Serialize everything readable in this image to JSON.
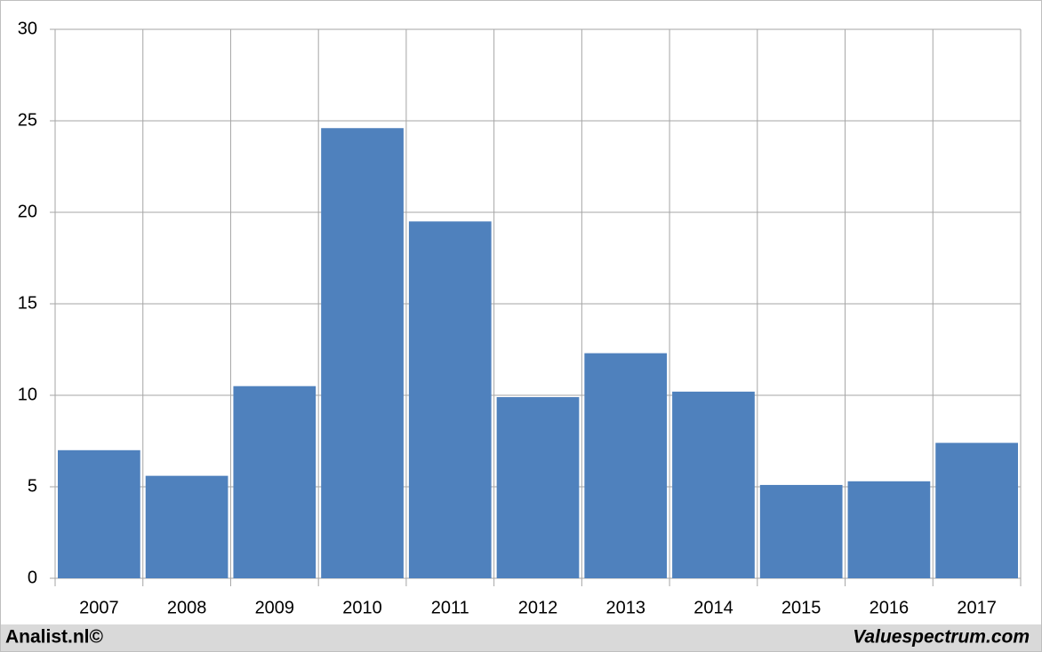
{
  "chart_data": {
    "type": "bar",
    "categories": [
      "2007",
      "2008",
      "2009",
      "2010",
      "2011",
      "2012",
      "2013",
      "2014",
      "2015",
      "2016",
      "2017"
    ],
    "values": [
      7.0,
      5.6,
      10.5,
      24.6,
      19.5,
      9.9,
      12.3,
      10.2,
      5.1,
      5.3,
      7.4
    ],
    "color": "#4f81bd",
    "ylim": [
      0,
      30
    ],
    "yticks": [
      0,
      5,
      10,
      15,
      20,
      25,
      30
    ],
    "grid": true
  },
  "footer": {
    "left": "Analist.nl©",
    "right": "Valuespectrum.com"
  }
}
